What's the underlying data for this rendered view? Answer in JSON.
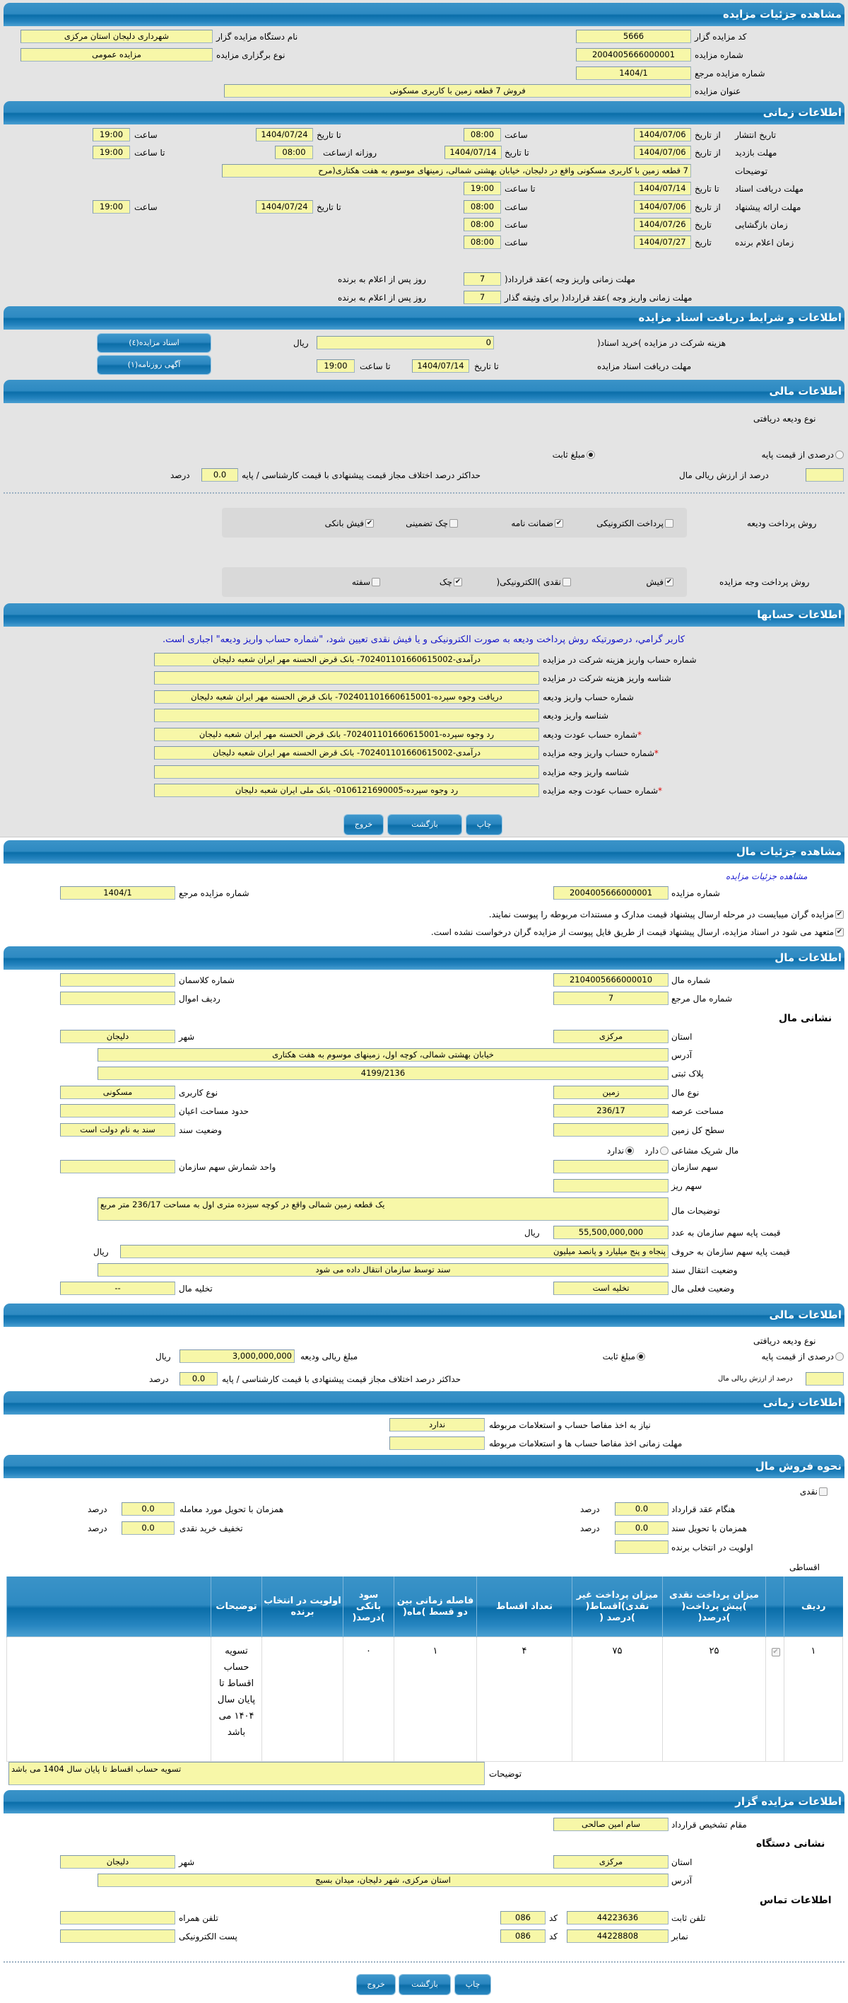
{
  "colors": {
    "header_blue": "#2e8ac2",
    "field_bg": "#f7f7a8",
    "page_bg_top": "#e4e4e4",
    "notice_text": "#1515c8",
    "required_star": "#e00000"
  },
  "auction_details": {
    "title": "مشاهده جزئیات مزایده",
    "code_label": "کد مزایده گزار",
    "code": "5666",
    "org_label": "نام دستگاه مزایده گزار",
    "org": "شهرداری دلیجان استان مرکزی",
    "number_label": "شماره مزایده",
    "number": "2004005666000001",
    "type_label": "نوع برگزاری مزایده",
    "type": "مزایده عمومی",
    "ref_label": "شماره مزایده مرجع",
    "ref": "1404/1",
    "subject_label": "عنوان مزایده",
    "subject": "فروش 7 قطعه زمین با کاربری مسکونی"
  },
  "timing": {
    "title": "اطلاعات زمانی",
    "words": {
      "from_date": "از تاریخ",
      "to_date": "تا تاریخ",
      "hour": "ساعت",
      "to_hour": "تا ساعت",
      "date": "تاریخ",
      "daily_from": "روزانه ازساعت",
      "days_after": "روز پس از اعلام به برنده"
    },
    "publish": {
      "label": "تاریخ انتشار",
      "from": "1404/07/06",
      "from_time": "08:00",
      "to": "1404/07/24",
      "to_time": "19:00"
    },
    "visit": {
      "label": "مهلت بازدید",
      "from": "1404/07/06",
      "to": "1404/07/14",
      "daily_from": "08:00",
      "to_time": "19:00"
    },
    "desc_label": "توضیحات",
    "desc": "7 قطعه زمین با کاربری مسکونی واقع در دلیجان، خیابان بهشتی شمالی، زمینهای موسوم به هفت هکتاری(مرح",
    "docs": {
      "label": "مهلت دریافت اسناد",
      "to": "1404/07/14",
      "to_time": "19:00"
    },
    "offer": {
      "label": "مهلت ارائه پیشنهاد",
      "from": "1404/07/06",
      "from_time": "08:00",
      "to": "1404/07/24",
      "to_time": "19:00"
    },
    "opening": {
      "label": "زمان بازگشایی",
      "date": "1404/07/26",
      "time": "08:00"
    },
    "winner": {
      "label": "زمان اعلام برنده",
      "date": "1404/07/27",
      "time": "08:00"
    },
    "pay_deadline_label": "مهلت زمانی واریز وجه )عقد قرارداد(",
    "pay_deadline": "7",
    "pay_deadline2_label": "مهلت زمانی واریز وجه )عقد قرارداد( برای وثیقه گذار",
    "pay_deadline2": "7"
  },
  "documents": {
    "title": "اطلاعات و شرایط دریافت اسناد مزایده",
    "fee_label": "هزینه شرکت در مزایده )خرید اسناد(",
    "fee": "0",
    "currency": "ریال",
    "deadline_label": "مهلت دریافت اسناد مزایده",
    "deadline_to": "1404/07/14",
    "deadline_time": "19:00",
    "docs_button": "اسناد مزایده(٤)",
    "newspaper_button": "آگهی روزنامه(۱)"
  },
  "financial": {
    "title": "اطلاعات مالی",
    "deposit_type_label": "نوع ودیعه دریافتی",
    "percent_option": "درصدی از قیمت پایه",
    "percent_selected": false,
    "fixed_option": "مبلغ ثابت",
    "fixed_selected": true,
    "percent_of_value_label": "درصد از ارزش ریالی مال",
    "percent_of_value": "",
    "max_diff_label": "حداکثر درصد اختلاف مجاز قیمت پیشنهادی با قیمت کارشناسی / پایه",
    "max_diff": "0.0",
    "percent_unit": "درصد",
    "deposit_method_label": "روش پرداخت ودیعه",
    "deposit_methods": [
      {
        "label": "پرداخت الکترونیکی",
        "checked": false
      },
      {
        "label": "ضمانت نامه",
        "checked": true
      },
      {
        "label": "چک تضمینی",
        "checked": false
      },
      {
        "label": "فیش بانکی",
        "checked": true
      }
    ],
    "payment_method_label": "روش پرداخت وجه مزایده",
    "payment_methods": [
      {
        "label": "فیش",
        "checked": true
      },
      {
        "label": "نقدی )الکترونیکی(",
        "checked": false
      },
      {
        "label": "چک",
        "checked": true
      },
      {
        "label": "سفته",
        "checked": false
      }
    ]
  },
  "accounts": {
    "title": "اطلاعات حسابها",
    "notice": "کاربر گرامي، درصورتیکه روش پرداخت ودیعه به صورت الکترونیکی و یا فیش نقدی تعیین شود، \"شماره حساب واریز ودیعه\" اجباری است.",
    "rows": [
      {
        "label": "شماره حساب واریز هزینه شرکت در مزایده",
        "value": "درآمدی-702401101660615002- بانک قرض الحسنه مهر ایران شعبه دلیجان",
        "required": false
      },
      {
        "label": "شناسه واریز هزینه شرکت در مزایده",
        "value": "",
        "required": false
      },
      {
        "label": "شماره حساب واریز ودیعه",
        "value": "دریافت وجوه سپرده-702401101660615001- بانک قرض الحسنه مهر ایران شعبه دلیجان",
        "required": false
      },
      {
        "label": "شناسه واریز ودیعه",
        "value": "",
        "required": false
      },
      {
        "label": "شماره حساب عودت ودیعه",
        "value": "رد وجوه سپرده-702401101660615001- بانک قرض الحسنه مهر ایران شعبه دلیجان",
        "required": true
      },
      {
        "label": "شماره حساب واریز وجه مزایده",
        "value": "درآمدی-702401101660615002- بانک قرض الحسنه مهر ایران شعبه دلیجان",
        "required": true
      },
      {
        "label": "شناسه واریز وجه مزایده",
        "value": "",
        "required": false
      },
      {
        "label": "شماره حساب عودت وجه مزایده",
        "value": "رد وجوه سپرده-0106121690005- بانک ملی ایران شعبه دلیجان",
        "required": true
      }
    ],
    "required_mark": "*"
  },
  "buttons": {
    "print": "چاپ",
    "back": "بازگشت",
    "exit": "خروج"
  },
  "property_details": {
    "title": "مشاهده جزئیات مال",
    "auction_link": "مشاهده جزئیات مزایده",
    "auction_no_label": "شماره مزایده",
    "auction_no": "2004005666000001",
    "ref_label": "شماره مزایده مرجع",
    "ref": "1404/1",
    "check1": "مزایده گران میبایست در مرحله ارسال پیشنهاد قیمت مدارک و مستندات مربوطه را پیوست نمایند.",
    "check1_checked": true,
    "check2": "متعهد می شود در اسناد مزایده، ارسال پیشنهاد قیمت از طریق فایل پیوست از مزایده گران درخواست نشده است.",
    "check2_checked": true
  },
  "property": {
    "title": "اطلاعات مال",
    "prop_no_label": "شماره مال",
    "prop_no": "2104005666000010",
    "class_no_label": "شماره کلاسمان",
    "class_no": "",
    "prop_ref_label": "شماره مال مرجع",
    "prop_ref": "7",
    "row_no_label": "ردیف اموال",
    "row_no": "",
    "address_heading": "نشانی مال",
    "province_label": "استان",
    "province": "مرکزی",
    "city_label": "شهر",
    "city": "دلیجان",
    "address_label": "آدرس",
    "address": "خیابان بهشتی شمالی، کوچه اول، زمینهای موسوم به هفت هکتاری",
    "plate_label": "پلاک ثبتی",
    "plate": "4199/2136",
    "type_label": "نوع مال",
    "type": "زمین",
    "usage_label": "نوع کاربری",
    "usage": "مسکونی",
    "land_area_label": "مساحت عرصه",
    "land_area": "236/17",
    "building_area_label": "حدود مساحت اعیان",
    "building_area": "",
    "total_land_label": "سطح کل زمین",
    "total_land": "",
    "deed_status_label": "وضعیت سند",
    "deed_status": "سند به نام دولت است",
    "joint_label": "مال شریک مشاعی",
    "joint_yes": "دارد",
    "joint_no": "ندارد",
    "joint_yes_selected": false,
    "joint_no_selected": true,
    "org_share_label": "سهم سازمان",
    "org_share": "",
    "share_unit_label": "واحد شمارش سهم سازمان",
    "share_unit": "",
    "fine_share_label": "سهم ریز",
    "fine_share": "",
    "description_label": "توضیحات مال",
    "description": "یک قطعه زمین شمالی واقع در کوچه سیزده متری اول به مساحت 236/17 متر مربع",
    "base_price_num_label": "قیمت پایه سهم سازمان به عدد",
    "base_price_num": "55,500,000,000",
    "base_price_words_label": "قیمت پایه سهم سازمان به حروف",
    "base_price_words": "پنجاه و پنج میلیارد و پانصد میلیون",
    "currency": "ریال",
    "transfer_label": "وضعیت انتقال سند",
    "transfer": "سند توسط سازمان انتقال داده می شود",
    "current_status_label": "وضعیت فعلی مال",
    "current_status": "تخلیه است",
    "evacuation_label": "تخلیه مال",
    "evacuation": "--"
  },
  "financial2": {
    "title": "اطلاعات مالی",
    "deposit_type_label": "نوع ودیعه دریافتی",
    "percent_option": "درصدی از قیمت پایه",
    "percent_selected": false,
    "fixed_option": "مبلغ ثابت",
    "fixed_selected": true,
    "deposit_amount_label": "مبلغ ریالی ودیعه",
    "deposit_amount": "3,000,000,000",
    "currency": "ریال",
    "percent_of_value_label": "درصد از ارزش ریالی مال",
    "percent_of_value": "",
    "max_diff_label": "حداکثر درصد اختلاف مجاز قیمت پیشنهادی با قیمت کارشناسی / پایه",
    "max_diff": "0.0",
    "percent_unit": "درصد"
  },
  "timing2": {
    "title": "اطلاعات زمانی",
    "settlement_label": "نیاز به اخذ مفاصا حساب و استعلامات مربوطه",
    "settlement": "ندارد",
    "settlement_deadline_label": "مهلت زمانی اخذ مفاصا حساب ها و استعلامات مربوطه",
    "settlement_deadline": ""
  },
  "sale": {
    "title": "نحوه فروش مال",
    "cash_label": "نقدی",
    "cash_checked": false,
    "contract_label": "هنگام عقد قرارداد",
    "contract": "0.0",
    "delivery_label": "همزمان با تحویل مورد معامله",
    "delivery": "0.0",
    "deed_label": "همزمان با تحویل سند",
    "deed": "0.0",
    "discount_label": "تخفیف خرید نقدی",
    "discount": "0.0",
    "priority_label": "اولویت در انتخاب برنده",
    "priority": "",
    "percent_unit": "درصد",
    "installment_label": "اقساطی",
    "table": {
      "columns": [
        "ردیف",
        "",
        "میزان پرداخت نقدی )پیش پرداخت( )درصد(",
        "میزان پرداخت غیر نقدی)اقساط( )درصد (",
        "تعداد اقساط",
        "فاصله زمانی بین دو قسط )ماه(",
        "سود بانکی )درصد(",
        "اولویت در انتخاب برنده",
        "توضیحات",
        ""
      ],
      "rows": [
        {
          "row": "۱",
          "selected": true,
          "cash": "۲۵",
          "noncash": "۷۵",
          "count": "۴",
          "interval": "۱",
          "interest": "۰",
          "priority": "",
          "desc": "تسویه حساب اقساط تا پایان سال ۱۴۰۴ می باشد",
          "extra": ""
        }
      ]
    },
    "notes_label": "توضیحات",
    "notes": "تسویه حساب اقساط تا پایان سال 1404 می باشد"
  },
  "auctioneer": {
    "title": "اطلاعات مزایده گزار",
    "authority_label": "مقام تشخیص قرارداد",
    "authority": "سام امین صالحی",
    "address_heading": "نشانی دستگاه",
    "province_label": "استان",
    "province": "مرکزی",
    "city_label": "شهر",
    "city": "دلیجان",
    "address_label": "آدرس",
    "address": "استان مرکزی، شهر دلیجان، میدان بسیج",
    "contact_heading": "اطلاعات تماس",
    "phone_label": "تلفن ثابت",
    "phone": "44223636",
    "code_label": "کد",
    "phone_code": "086",
    "fax_label": "نمابر",
    "fax": "44228808",
    "fax_code": "086",
    "mobile_label": "تلفن همراه",
    "mobile": "",
    "email_label": "پست الکترونیکی",
    "email": ""
  }
}
